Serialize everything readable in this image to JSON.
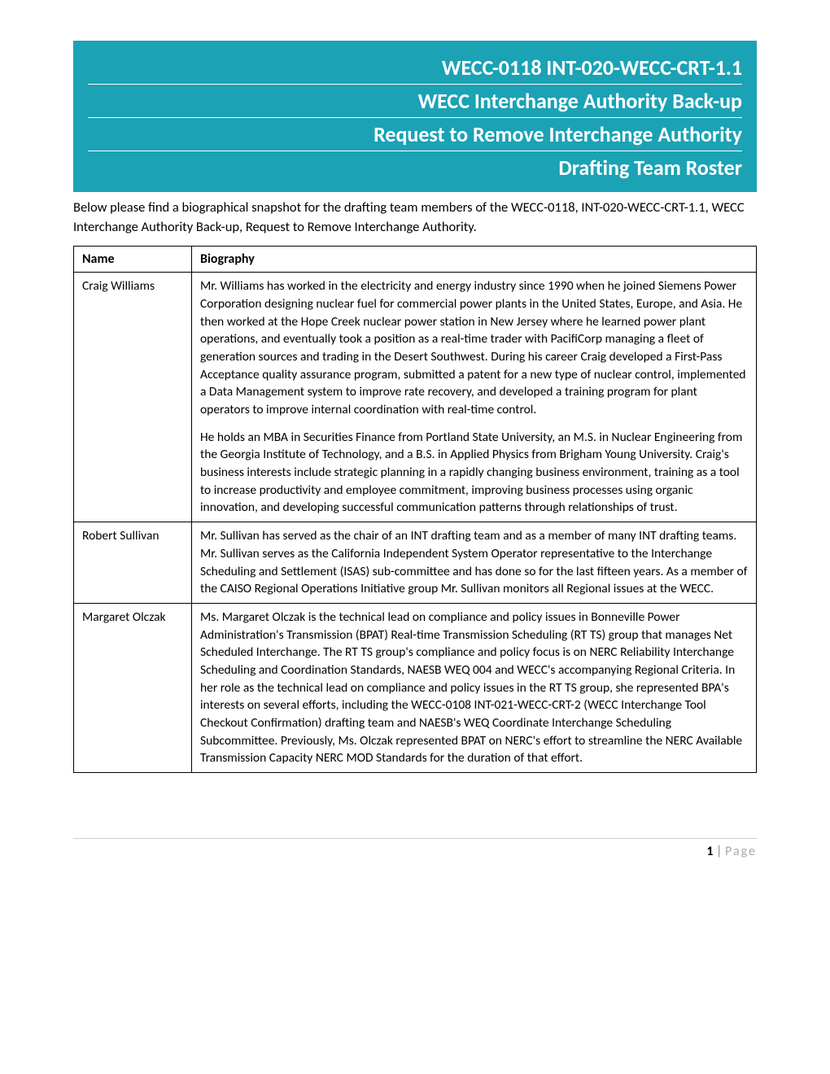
{
  "header": {
    "lines": [
      "WECC-0118 INT-020-WECC-CRT-1.1",
      "WECC Interchange Authority Back-up",
      "Request to Remove Interchange Authority",
      "Drafting Team Roster"
    ]
  },
  "intro": "Below please find a biographical snapshot for the drafting team members of the WECC-0118, INT-020-WECC-CRT-1.1, WECC Interchange Authority Back-up, Request to Remove Interchange Authority.",
  "table": {
    "headers": {
      "name": "Name",
      "bio": "Biography"
    },
    "rows": [
      {
        "name": "Craig Williams",
        "bio": [
          "Mr. Williams has worked in the electricity and energy industry since 1990 when he joined Siemens Power Corporation designing nuclear fuel for commercial power plants in the United States, Europe, and Asia. He then worked at the Hope Creek nuclear power station in New Jersey where he learned power plant operations, and eventually took a position as a real-time trader with PacifiCorp managing a fleet of generation sources and trading in the Desert Southwest. During his career Craig developed a First-Pass Acceptance quality assurance program, submitted a patent for a new type of nuclear control, implemented a Data Management system to improve rate recovery, and developed a training program for plant operators to improve internal coordination with real-time control.",
          "He holds an MBA in Securities Finance from Portland State University, an M.S. in Nuclear Engineering from the Georgia Institute of Technology, and a B.S. in Applied Physics from Brigham Young University. Craig's business interests include strategic planning in a rapidly changing business environment, training as a tool to increase productivity and employee commitment, improving business processes using organic innovation, and developing successful communication patterns through relationships of trust."
        ]
      },
      {
        "name": "Robert Sullivan",
        "bio": [
          "Mr. Sullivan has served as the chair of an INT drafting team and as a member of many INT drafting teams.  Mr. Sullivan serves as the California Independent System Operator representative to the Interchange Scheduling and Settlement (ISAS) sub-committee and has done so for the last fifteen years.  As a member of the CAISO Regional Operations Initiative group Mr. Sullivan monitors all Regional issues at the WECC."
        ]
      },
      {
        "name": "Margaret Olczak",
        "bio": [
          "Ms. Margaret Olczak is the technical lead on compliance and policy issues in Bonneville Power Administration's Transmission (BPAT) Real-time Transmission Scheduling (RT TS) group that manages Net Scheduled Interchange.  The RT TS group's compliance and policy focus is on NERC Reliability Interchange Scheduling and Coordination Standards, NAESB WEQ 004 and WECC's accompanying Regional Criteria.  In her role as the technical lead on compliance and policy issues in the RT TS group, she represented BPA's interests on several efforts, including the WECC-0108 INT-021-WECC-CRT-2 (WECC Interchange Tool Checkout Confirmation) drafting team and NAESB's WEQ Coordinate Interchange Scheduling Subcommittee.  Previously, Ms. Olczak represented BPAT on NERC's effort to streamline the NERC Available Transmission Capacity NERC MOD Standards for the duration of that effort."
        ]
      }
    ]
  },
  "footer": {
    "page_number": "1",
    "separator": " | ",
    "page_label": "Page"
  },
  "colors": {
    "header_bg": "#1ba2b5",
    "header_text": "#ffffff",
    "body_text": "#000000",
    "footer_rule": "#cccccc",
    "footer_label": "#aaaaaa"
  }
}
